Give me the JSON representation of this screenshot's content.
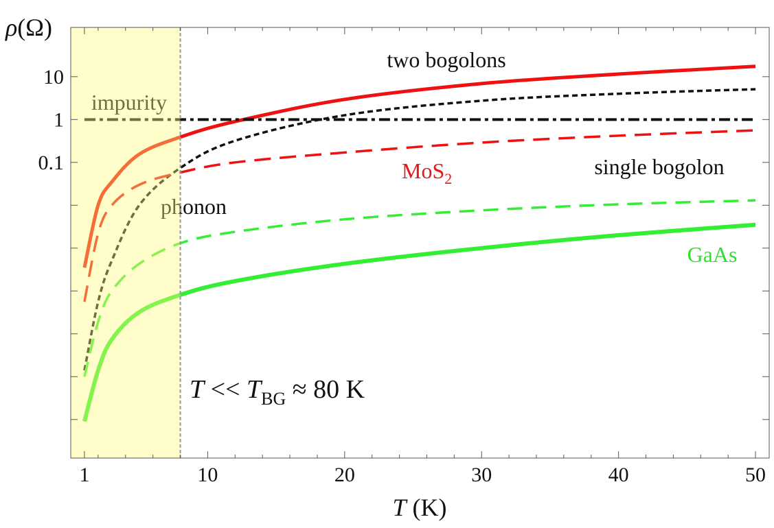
{
  "chart_data": {
    "type": "line",
    "ylabel": [
      "ρ",
      "(Ω)"
    ],
    "xlabel": [
      "T",
      " (K)"
    ],
    "x": [
      1,
      2,
      3,
      5,
      8,
      12,
      20,
      30,
      40,
      50
    ],
    "xlim": [
      0,
      51
    ],
    "xticks": [
      1,
      10,
      20,
      30,
      40,
      50
    ],
    "xticks_minor": [
      2,
      4,
      6,
      8,
      12,
      14,
      16,
      18,
      22,
      24,
      26,
      28,
      32,
      34,
      36,
      38,
      42,
      44,
      46,
      48
    ],
    "ylim": [
      1.26e-08,
      141
    ],
    "log_y": true,
    "yticks": [
      10,
      1,
      0.1
    ],
    "yticks_minor": [
      0.01,
      0.001,
      0.0001,
      1e-05,
      1e-06,
      1e-07
    ],
    "shade_x": 8,
    "series": [
      {
        "color": "#ee1111",
        "dash": "none",
        "width": 5,
        "values": [
          0.00035,
          0.01,
          0.035,
          0.155,
          0.39,
          0.9,
          2.95,
          6.9,
          11.5,
          17.4
        ]
      },
      {
        "color": "#111111",
        "dash": "8,5",
        "width": 3.5,
        "values": [
          1.4e-06,
          5.6e-05,
          0.00051,
          0.01,
          0.074,
          0.32,
          1.26,
          2.75,
          4.0,
          5.1
        ]
      },
      {
        "color": "#111111",
        "dash": "16,6,5,6",
        "width": 4,
        "values": [
          1,
          1,
          1,
          1,
          1,
          1,
          1,
          1,
          1,
          1
        ]
      },
      {
        "color": "#ee1111",
        "dash": "24,13",
        "width": 3.5,
        "values": [
          5.6e-05,
          0.0022,
          0.01,
          0.03,
          0.058,
          0.1,
          0.17,
          0.29,
          0.42,
          0.56
        ]
      },
      {
        "color": "#33ee33",
        "dash": "22,13",
        "width": 3.5,
        "values": [
          1e-06,
          1.9e-05,
          0.0001,
          0.00043,
          0.0013,
          0.0024,
          0.0047,
          0.0076,
          0.0105,
          0.013
        ]
      },
      {
        "color": "#33ee33",
        "dash": "none",
        "width": 6,
        "values": [
          9e-08,
          1.4e-06,
          7.4e-06,
          3.2e-05,
          8.1e-05,
          0.00017,
          0.00043,
          0.001,
          0.002,
          0.0035
        ]
      }
    ],
    "annotations": {
      "two_bogolons": "two bogolons",
      "impurity": "impurity",
      "single_bogolon": "single bogolon",
      "phonon": "phonon",
      "mos2": [
        "MoS",
        "2"
      ],
      "gaas": "GaAs",
      "regime": [
        "T",
        " << ",
        "T",
        "BG",
        " ≈ 80 K"
      ]
    }
  }
}
